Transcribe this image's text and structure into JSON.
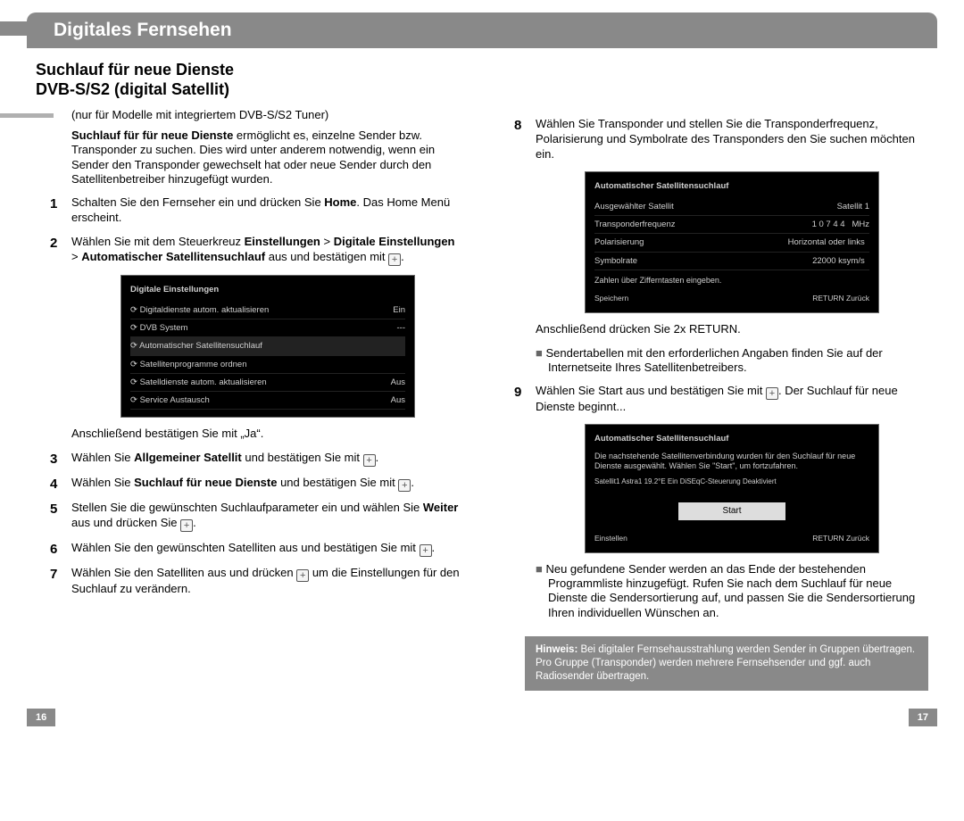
{
  "header": "Digitales Fernsehen",
  "title1": "Suchlauf für neue Dienste",
  "title2": "DVB-S/S2 (digital Satellit)",
  "tuner_note": "(nur für Modelle mit integriertem DVB-S/S2 Tuner)",
  "intro_bold": "Suchlauf für für neue Dienste",
  "intro_rest": " ermöglicht es, einzelne Sender bzw. Transponder zu suchen. Dies wird unter anderem notwendig, wenn ein Sender den Transponder gewechselt hat oder neue Sender durch den Satellitenbetreiber hinzugefügt wurden.",
  "steps_left": {
    "s1a": "Schalten Sie den Fernseher ein und drücken Sie ",
    "s1b": "Home",
    "s1c": ". Das Home Menü erscheint.",
    "s2a": "Wählen Sie mit dem Steuerkreuz ",
    "s2b": "Einstellungen",
    "s2c": " > ",
    "s2d": "Digitale Einstellungen",
    "s2e": " > ",
    "s2f": "Automatischer Satellitensuchlauf",
    "s2g": " aus und bestätigen mit ",
    "s_after1": "Anschließend bestätigen Sie mit „Ja“.",
    "s3a": "Wählen Sie ",
    "s3b": "Allgemeiner Satellit",
    "s3c": " und bestätigen Sie mit ",
    "s4a": "Wählen Sie ",
    "s4b": "Suchlauf für neue Dienste",
    "s4c": " und bestätigen Sie mit ",
    "s5a": "Stellen Sie die gewünschten Suchlaufparameter ein und wählen Sie ",
    "s5b": "Weiter",
    "s5c": " aus und drücken Sie ",
    "s6": "Wählen Sie den gewünschten Satelliten aus und bestätigen Sie mit ",
    "s7a": "Wählen Sie den Satelliten aus und drücken ",
    "s7b": " um die Einstellungen für den Suchlauf zu verändern."
  },
  "steps_right": {
    "s8": "Wählen Sie Transponder und stellen Sie die Transponderfrequenz, Polarisierung und Symbolrate des Transponders den Sie suchen möchten ein.",
    "after8": "Anschließend drücken Sie 2x RETURN.",
    "bullet8": "Sendertabellen mit den erforderlichen Angaben finden Sie auf der Internetseite Ihres Satellitenbetreibers.",
    "s9a": "Wählen Sie Start aus und bestätigen Sie mit ",
    "s9b": ". Der Suchlauf für neue Dienste beginnt...",
    "bullet9": "Neu gefundene Sender werden an das Ende der bestehenden Programmliste hinzugefügt. Rufen Sie nach dem Suchlauf für neue Dienste die Sendersortierung auf, und passen Sie die Sendersortierung Ihren individuellen Wünschen an."
  },
  "hint_label": "Hinweis:",
  "hint_text": " Bei digitaler Fernsehausstrahlung werden Sender in Gruppen übertragen. Pro Gruppe (Transponder) werden mehrere Fernsehsender und ggf. auch Radiosender übertragen.",
  "shot1": {
    "title": "Digitale Einstellungen",
    "rows": [
      [
        "Digitaldienste autom. aktualisieren",
        "Ein"
      ],
      [
        "DVB System",
        "---"
      ],
      [
        "Automatischer Satellitensuchlauf",
        ""
      ],
      [
        "Satellitenprogramme ordnen",
        ""
      ],
      [
        "Satelldienste autom. aktualisieren",
        "Aus"
      ],
      [
        "Service Austausch",
        "Aus"
      ]
    ],
    "highlight_index": 2
  },
  "shot2": {
    "title": "Automatischer Satellitensuchlauf",
    "sat_label": "Ausgewählter Satellit",
    "sat_value": "Satellit 1",
    "rows": [
      [
        "Transponderfrequenz",
        "1 0 7 4 4",
        "MHz"
      ],
      [
        "Polarisierung",
        "Horizontal oder links",
        ""
      ],
      [
        "Symbolrate",
        "22000 ksym/s",
        ""
      ]
    ],
    "hint": "Zahlen über Zifferntasten eingeben.",
    "foot_l": "Speichern",
    "foot_r": "RETURN Zurück"
  },
  "shot3": {
    "title": "Automatischer Satellitensuchlauf",
    "msg": "Die nachstehende Satellitenverbindung wurden für den Suchlauf für neue Dienste ausgewählt. Wählen Sie \"Start\", um fortzufahren.",
    "line": "Satellit1   Astra1 19.2°E        Ein        DiSEqC-Steuerung   Deaktiviert",
    "btn": "Start",
    "foot_l": "Einstellen",
    "foot_r": "RETURN Zurück"
  },
  "page_left": "16",
  "page_right": "17",
  "colors": {
    "bar": "#898989",
    "text": "#000000",
    "screenshot_bg": "#000000"
  }
}
